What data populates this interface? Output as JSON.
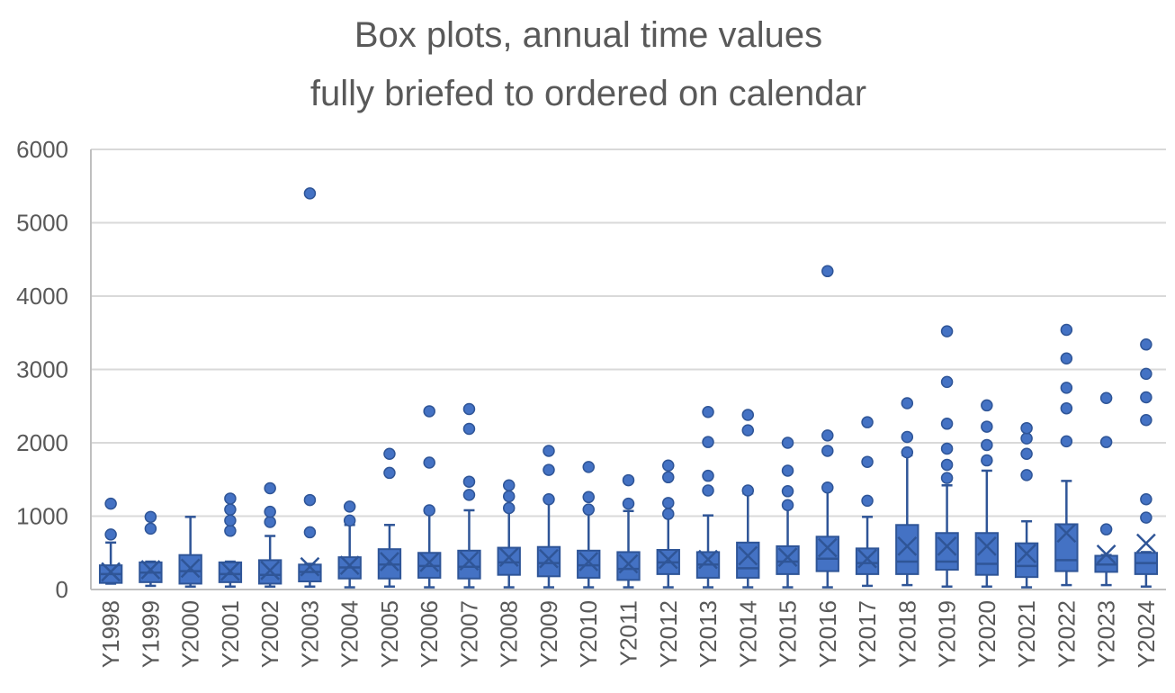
{
  "chart_data": {
    "type": "box",
    "title": [
      "Box plots, annual time values",
      "fully briefed to ordered on calendar"
    ],
    "xlabel": "",
    "ylabel": "",
    "ylim": [
      0,
      6000
    ],
    "yticks": [
      0,
      1000,
      2000,
      3000,
      4000,
      5000,
      6000
    ],
    "grid": true,
    "legend": "none",
    "color": "#4472C4",
    "edge_color": "#2F5597",
    "categories": [
      "Y1998",
      "Y1999",
      "Y2000",
      "Y2001",
      "Y2002",
      "Y2003",
      "Y2004",
      "Y2005",
      "Y2006",
      "Y2007",
      "Y2008",
      "Y2009",
      "Y2010",
      "Y2011",
      "Y2012",
      "Y2013",
      "Y2014",
      "Y2015",
      "Y2016",
      "Y2017",
      "Y2018",
      "Y2019",
      "Y2020",
      "Y2021",
      "Y2022",
      "Y2023",
      "Y2024"
    ],
    "boxes": [
      {
        "min": 80,
        "q1": 90,
        "median": 210,
        "q3": 330,
        "max": 640,
        "mean": 240,
        "outliers": [
          750,
          1170
        ]
      },
      {
        "min": 50,
        "q1": 100,
        "median": 230,
        "q3": 370,
        "max": 380,
        "mean": 270,
        "outliers": [
          830,
          990
        ]
      },
      {
        "min": 40,
        "q1": 80,
        "median": 250,
        "q3": 470,
        "max": 990,
        "mean": 290,
        "outliers": []
      },
      {
        "min": 40,
        "q1": 100,
        "median": 210,
        "q3": 370,
        "max": 380,
        "mean": 250,
        "outliers": [
          800,
          940,
          1090,
          1240
        ]
      },
      {
        "min": 40,
        "q1": 80,
        "median": 200,
        "q3": 400,
        "max": 730,
        "mean": 260,
        "outliers": [
          920,
          1060,
          1380
        ]
      },
      {
        "min": 40,
        "q1": 110,
        "median": 240,
        "q3": 340,
        "max": 350,
        "mean": 310,
        "outliers": [
          780,
          1220,
          5400
        ]
      },
      {
        "min": 30,
        "q1": 150,
        "median": 300,
        "q3": 440,
        "max": 880,
        "mean": 330,
        "outliers": [
          940,
          1130
        ]
      },
      {
        "min": 40,
        "q1": 150,
        "median": 340,
        "q3": 550,
        "max": 880,
        "mean": 380,
        "outliers": [
          1590,
          1850
        ]
      },
      {
        "min": 30,
        "q1": 160,
        "median": 320,
        "q3": 500,
        "max": 1050,
        "mean": 370,
        "outliers": [
          1080,
          1730,
          2430
        ]
      },
      {
        "min": 30,
        "q1": 150,
        "median": 310,
        "q3": 530,
        "max": 1080,
        "mean": 390,
        "outliers": [
          1290,
          1470,
          2190,
          2460
        ]
      },
      {
        "min": 30,
        "q1": 200,
        "median": 370,
        "q3": 570,
        "max": 1080,
        "mean": 440,
        "outliers": [
          1110,
          1270,
          1420
        ]
      },
      {
        "min": 30,
        "q1": 180,
        "median": 360,
        "q3": 580,
        "max": 1220,
        "mean": 420,
        "outliers": [
          1230,
          1630,
          1890
        ]
      },
      {
        "min": 30,
        "q1": 160,
        "median": 330,
        "q3": 530,
        "max": 1080,
        "mean": 380,
        "outliers": [
          1090,
          1260,
          1670
        ]
      },
      {
        "min": 30,
        "q1": 130,
        "median": 280,
        "q3": 510,
        "max": 1070,
        "mean": 350,
        "outliers": [
          1170,
          1490
        ]
      },
      {
        "min": 30,
        "q1": 210,
        "median": 370,
        "q3": 540,
        "max": 1020,
        "mean": 410,
        "outliers": [
          1030,
          1180,
          1530,
          1690
        ]
      },
      {
        "min": 30,
        "q1": 160,
        "median": 340,
        "q3": 510,
        "max": 1010,
        "mean": 410,
        "outliers": [
          1350,
          1550,
          2010,
          2420
        ]
      },
      {
        "min": 30,
        "q1": 160,
        "median": 290,
        "q3": 640,
        "max": 1310,
        "mean": 460,
        "outliers": [
          1350,
          2170,
          2380
        ]
      },
      {
        "min": 30,
        "q1": 210,
        "median": 380,
        "q3": 590,
        "max": 1130,
        "mean": 440,
        "outliers": [
          1150,
          1340,
          1620,
          2000
        ]
      },
      {
        "min": 30,
        "q1": 250,
        "median": 420,
        "q3": 720,
        "max": 1380,
        "mean": 570,
        "outliers": [
          1390,
          1890,
          2100,
          4340
        ]
      },
      {
        "min": 50,
        "q1": 210,
        "median": 360,
        "q3": 560,
        "max": 990,
        "mean": 420,
        "outliers": [
          1210,
          1740,
          2280
        ]
      },
      {
        "min": 60,
        "q1": 210,
        "median": 380,
        "q3": 880,
        "max": 1830,
        "mean": 590,
        "outliers": [
          1870,
          2080,
          2540
        ]
      },
      {
        "min": 40,
        "q1": 270,
        "median": 380,
        "q3": 770,
        "max": 1420,
        "mean": 590,
        "outliers": [
          1520,
          1700,
          1920,
          2260,
          2830,
          3520
        ]
      },
      {
        "min": 40,
        "q1": 200,
        "median": 350,
        "q3": 770,
        "max": 1620,
        "mean": 590,
        "outliers": [
          1760,
          1970,
          2220,
          2510
        ]
      },
      {
        "min": 30,
        "q1": 170,
        "median": 320,
        "q3": 630,
        "max": 930,
        "mean": 490,
        "outliers": [
          1560,
          1850,
          2060,
          2200
        ]
      },
      {
        "min": 60,
        "q1": 250,
        "median": 400,
        "q3": 890,
        "max": 1480,
        "mean": 770,
        "outliers": [
          2020,
          2470,
          2750,
          3150,
          3540
        ]
      },
      {
        "min": 60,
        "q1": 240,
        "median": 340,
        "q3": 460,
        "max": 470,
        "mean": 480,
        "outliers": [
          820,
          2010,
          2610
        ]
      },
      {
        "min": 40,
        "q1": 210,
        "median": 360,
        "q3": 500,
        "max": 510,
        "mean": 630,
        "outliers": [
          980,
          1230,
          2310,
          2620,
          2940,
          3340
        ]
      }
    ]
  }
}
